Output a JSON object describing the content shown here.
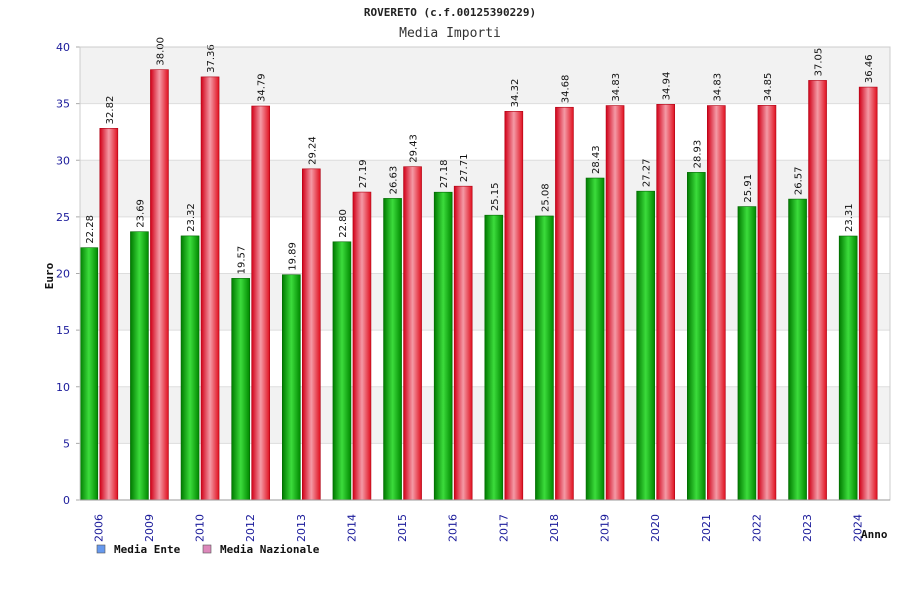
{
  "chart_data": {
    "type": "bar",
    "title": "ROVERETO (c.f.00125390229)",
    "subtitle": "Media Importi",
    "ylabel": "Euro",
    "xlabel": "Anno",
    "ylim": [
      0,
      40
    ],
    "yticks": [
      0,
      5,
      10,
      15,
      20,
      25,
      30,
      35,
      40
    ],
    "grid": true,
    "legend_position": "bottom-left",
    "categories": [
      "2006",
      "2009",
      "2010",
      "2012",
      "2013",
      "2014",
      "2015",
      "2016",
      "2017",
      "2018",
      "2019",
      "2020",
      "2021",
      "2022",
      "2023",
      "2024"
    ],
    "series": [
      {
        "name": "Media Ente",
        "color": "#00b000",
        "legend_color": "#6699ee",
        "values": [
          22.28,
          23.69,
          23.32,
          19.57,
          19.89,
          22.8,
          26.63,
          27.18,
          25.15,
          25.08,
          28.43,
          27.27,
          28.93,
          25.91,
          26.57,
          23.31
        ],
        "labels": [
          "22.28",
          "23.69",
          "23.32",
          "19.57",
          "19.89",
          "22.80",
          "26.63",
          "27.18",
          "25.15",
          "25.08",
          "28.43",
          "27.27",
          "28.93",
          "25.91",
          "26.57",
          "23.31"
        ]
      },
      {
        "name": "Media Nazionale",
        "color": "#e8102a",
        "legend_color": "#dd88bb",
        "values": [
          32.82,
          38.0,
          37.36,
          34.79,
          29.24,
          27.19,
          29.43,
          27.71,
          34.32,
          34.68,
          34.83,
          34.94,
          34.83,
          34.85,
          37.05,
          36.46
        ],
        "labels": [
          "32.82",
          "38.00",
          "37.36",
          "34.79",
          "29.24",
          "27.19",
          "29.43",
          "27.71",
          "34.32",
          "34.68",
          "34.83",
          "34.94",
          "34.83",
          "34.85",
          "37.05",
          "36.46"
        ]
      }
    ]
  }
}
